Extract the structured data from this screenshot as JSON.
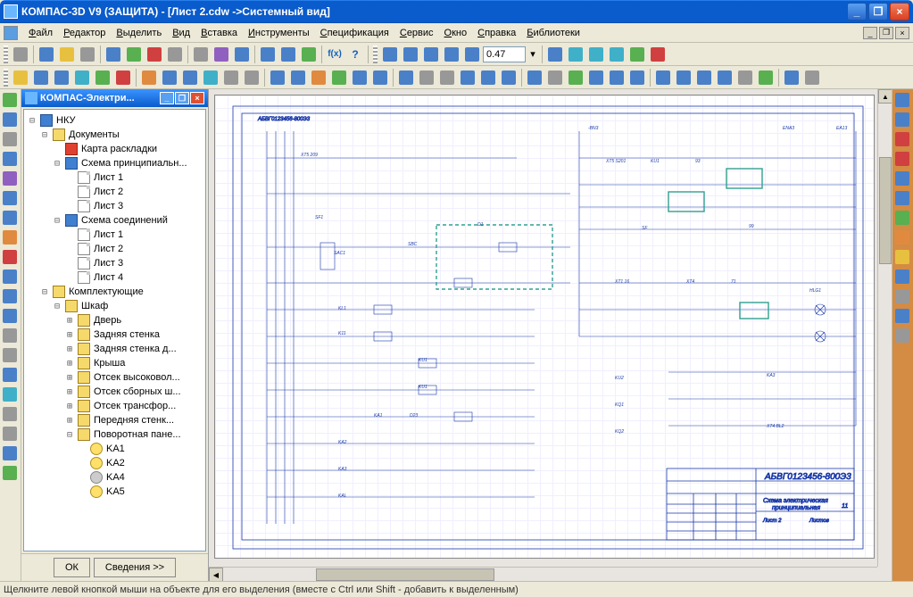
{
  "window": {
    "title": "КОМПАС-3D V9 (ЗАЩИТА) - [Лист 2.cdw ->Системный вид]",
    "min_label": "_",
    "max_label": "❐",
    "close_label": "×"
  },
  "menus": [
    "Файл",
    "Редактор",
    "Выделить",
    "Вид",
    "Вставка",
    "Инструменты",
    "Спецификация",
    "Сервис",
    "Окно",
    "Справка",
    "Библиотеки"
  ],
  "mdi": {
    "min": "_",
    "restore": "❐",
    "close": "×"
  },
  "toolbar1_icons": [
    "c-gray",
    "c-blue",
    "c-yellow",
    "c-gray",
    "c-blue",
    "c-green",
    "c-red",
    "c-gray",
    "c-gray",
    "c-purple",
    "c-blue",
    "c-blue",
    "c-blue",
    "c-green"
  ],
  "toolbar1_fx": "f(x)",
  "toolbar1_help": "?",
  "zoom_icons": [
    "c-blue",
    "c-blue",
    "c-blue",
    "c-blue",
    "c-blue"
  ],
  "zoom_value": "0.47",
  "zoom_tail": [
    "c-blue",
    "c-cyan",
    "c-cyan",
    "c-cyan",
    "c-green",
    "c-red"
  ],
  "toolbar2_icons": [
    "c-yellow",
    "c-blue",
    "c-blue",
    "c-cyan",
    "c-green",
    "c-red",
    "c-orange",
    "c-blue",
    "c-blue",
    "c-cyan",
    "c-gray",
    "c-gray",
    "c-blue",
    "c-blue",
    "c-orange",
    "c-green",
    "c-blue",
    "c-blue",
    "c-blue",
    "c-gray",
    "c-gray",
    "c-blue",
    "c-blue",
    "c-blue",
    "c-blue",
    "c-gray",
    "c-green",
    "c-blue",
    "c-blue",
    "c-blue",
    "c-blue",
    "c-blue",
    "c-blue",
    "c-blue",
    "c-gray",
    "c-green",
    "c-blue",
    "c-gray"
  ],
  "left_tools": [
    "c-green",
    "c-blue",
    "c-gray",
    "c-blue",
    "c-purple",
    "c-blue",
    "c-blue",
    "c-orange",
    "c-red",
    "c-blue",
    "c-blue",
    "c-blue",
    "c-gray",
    "c-gray",
    "c-blue",
    "c-cyan",
    "c-gray",
    "c-gray",
    "c-blue",
    "c-green"
  ],
  "right_tools": [
    "c-blue",
    "c-blue",
    "c-red",
    "c-red",
    "c-blue",
    "c-blue",
    "c-green",
    "c-orange",
    "c-yellow",
    "c-blue",
    "c-gray",
    "c-blue",
    "c-gray"
  ],
  "side_panel": {
    "title": "КОМПАС-Электри...",
    "ok": "ОК",
    "details": "Сведения >>"
  },
  "tree": {
    "root": "НКУ",
    "docs": "Документы",
    "layout": "Карта раскладки",
    "schematic": "Схема принципиальн...",
    "sheet1": "Лист 1",
    "sheet2": "Лист 2",
    "sheet3": "Лист 3",
    "sheet4": "Лист 4",
    "connections": "Схема соединений",
    "components": "Комплектующие",
    "cabinet": "Шкаф",
    "door": "Дверь",
    "backwall": "Задняя стенка",
    "backwall2": "Задняя стенка д...",
    "roof": "Крыша",
    "hv": "Отсек высоковол...",
    "busbar": "Отсек сборных ш...",
    "trans": "Отсек трансфор...",
    "frontwall": "Передняя стенк...",
    "rotpanel": "Поворотная пане...",
    "ka1": "KA1",
    "ka2": "KA2",
    "ka4": "KA4",
    "ka5": "KA5"
  },
  "drawing": {
    "title_block_number": "АБВГ0123456-800Э3",
    "title_block_desc1": "Схема электрическая",
    "title_block_desc2": "принципиальная",
    "sheet_label": "Лист 2",
    "format_label": "Листов",
    "count": "11",
    "frame_label_top": "АБВГ0123456-800Э3",
    "line_color": "#1838a8",
    "highlight_color": "#30a090",
    "grid_color": "#f0efff",
    "background": "#ffffff"
  },
  "statusbar": "Щелкните левой кнопкой мыши на объекте для его выделения (вместе с Ctrl или Shift - добавить к выделенным)"
}
